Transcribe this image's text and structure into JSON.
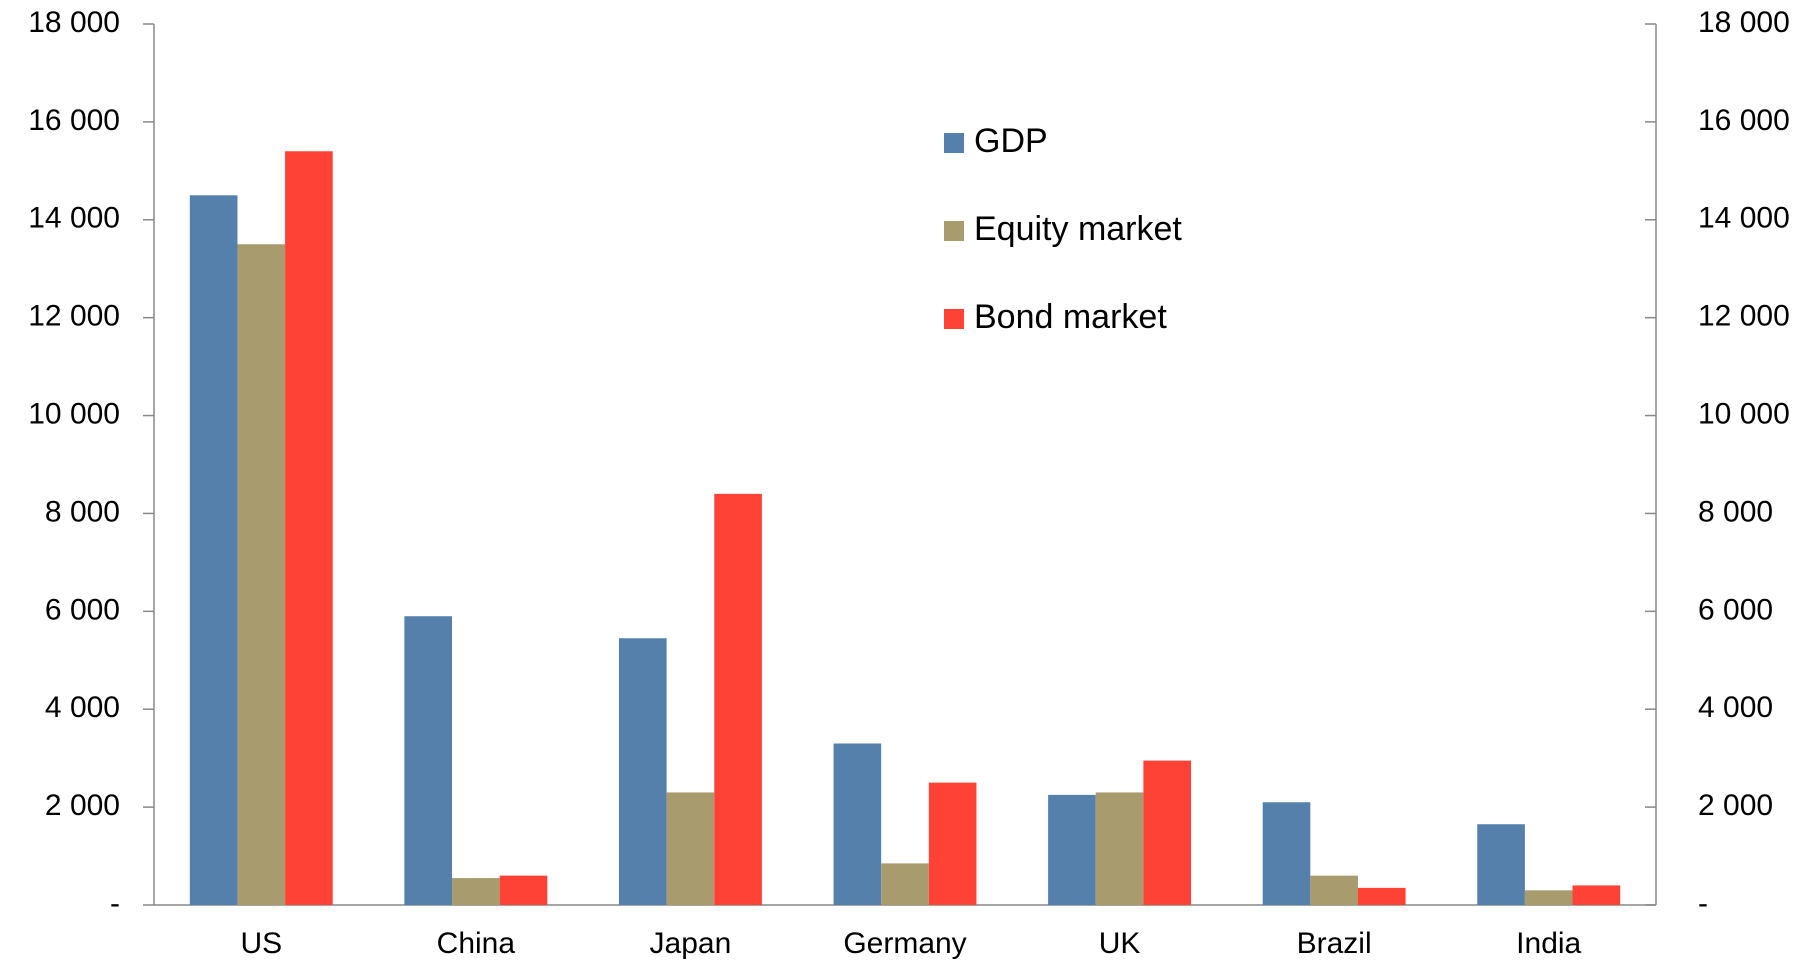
{
  "chart_data": {
    "type": "bar",
    "categories": [
      "US",
      "China",
      "Japan",
      "Germany",
      "UK",
      "Brazil",
      "India"
    ],
    "series": [
      {
        "name": "GDP",
        "color": "#5580ab",
        "values": [
          14500,
          5900,
          5450,
          3300,
          2250,
          2100,
          1650
        ]
      },
      {
        "name": "Equity market",
        "color": "#a89b6d",
        "values": [
          13500,
          550,
          2300,
          850,
          2300,
          600,
          300
        ]
      },
      {
        "name": "Bond market",
        "color": "#ff4136",
        "values": [
          15400,
          600,
          8400,
          2500,
          2950,
          350,
          400
        ]
      }
    ],
    "ylim": [
      0,
      18000
    ],
    "yticks": [
      {
        "value": 0,
        "label": "-"
      },
      {
        "value": 2000,
        "label": "2 000"
      },
      {
        "value": 4000,
        "label": "4 000"
      },
      {
        "value": 6000,
        "label": "6 000"
      },
      {
        "value": 8000,
        "label": "8 000"
      },
      {
        "value": 10000,
        "label": "10 000"
      },
      {
        "value": 12000,
        "label": "12 000"
      },
      {
        "value": 14000,
        "label": "14 000"
      },
      {
        "value": 16000,
        "label": "16 000"
      },
      {
        "value": 18000,
        "label": "18 000"
      }
    ],
    "y2lim": [
      0,
      18000
    ],
    "y2ticks": [
      {
        "value": 0,
        "label": "-"
      },
      {
        "value": 2000,
        "label": "2 000"
      },
      {
        "value": 4000,
        "label": "4 000"
      },
      {
        "value": 6000,
        "label": "6 000"
      },
      {
        "value": 8000,
        "label": "8 000"
      },
      {
        "value": 10000,
        "label": "10 000"
      },
      {
        "value": 12000,
        "label": "12 000"
      },
      {
        "value": 14000,
        "label": "14 000"
      },
      {
        "value": 16000,
        "label": "16 000"
      },
      {
        "value": 18000,
        "label": "18 000"
      }
    ],
    "grid": false,
    "legend": "top-center"
  }
}
